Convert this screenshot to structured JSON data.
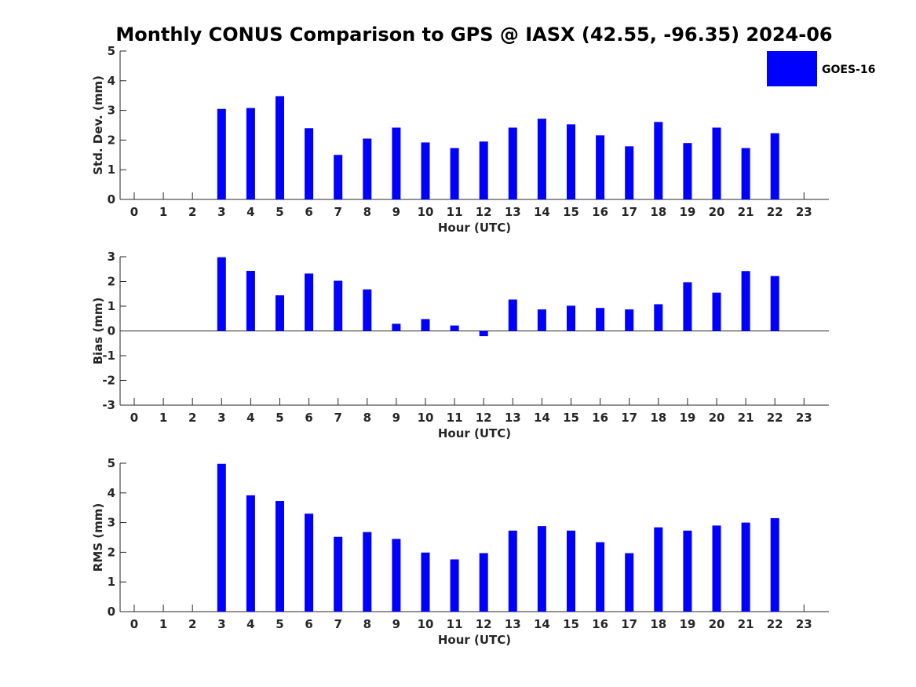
{
  "title": "Monthly CONUS Comparison to GPS @ IASX (42.55, -96.35) 2024-06",
  "colors": {
    "bar": "#0000ff",
    "axis": "#262626"
  },
  "legend": {
    "label": "GOES-16",
    "position": "top-right"
  },
  "chart_data": [
    {
      "type": "bar",
      "xlabel": "Hour (UTC)",
      "ylabel": "Std. Dev. (mm)",
      "categories": [
        "0",
        "1",
        "2",
        "3",
        "4",
        "5",
        "6",
        "7",
        "8",
        "9",
        "10",
        "11",
        "12",
        "13",
        "14",
        "15",
        "16",
        "17",
        "18",
        "19",
        "20",
        "21",
        "22",
        "23"
      ],
      "series": [
        {
          "name": "GOES-16",
          "values": [
            null,
            null,
            null,
            3.05,
            3.08,
            3.48,
            2.4,
            1.5,
            2.05,
            2.42,
            1.92,
            1.73,
            1.95,
            2.42,
            2.72,
            2.53,
            2.16,
            1.79,
            2.61,
            1.9,
            2.42,
            1.73,
            2.23,
            null
          ]
        }
      ],
      "ylim": [
        0,
        5
      ],
      "yticks": [
        "0",
        "1",
        "2",
        "3",
        "4",
        "5"
      ],
      "grid": false
    },
    {
      "type": "bar",
      "xlabel": "Hour (UTC)",
      "ylabel": "Bias (mm)",
      "categories": [
        "0",
        "1",
        "2",
        "3",
        "4",
        "5",
        "6",
        "7",
        "8",
        "9",
        "10",
        "11",
        "12",
        "13",
        "14",
        "15",
        "16",
        "17",
        "18",
        "19",
        "20",
        "21",
        "22",
        "23"
      ],
      "series": [
        {
          "name": "GOES-16",
          "values": [
            null,
            null,
            null,
            2.98,
            2.43,
            1.44,
            2.32,
            2.03,
            1.68,
            0.29,
            0.48,
            0.22,
            -0.21,
            1.27,
            0.87,
            1.02,
            0.93,
            0.87,
            1.08,
            1.97,
            1.55,
            2.42,
            2.22,
            null
          ]
        }
      ],
      "ylim": [
        -3,
        3
      ],
      "yticks": [
        "-3",
        "-2",
        "-1",
        "0",
        "1",
        "2",
        "3"
      ],
      "grid": false
    },
    {
      "type": "bar",
      "xlabel": "Hour (UTC)",
      "ylabel": "RMS (mm)",
      "categories": [
        "0",
        "1",
        "2",
        "3",
        "4",
        "5",
        "6",
        "7",
        "8",
        "9",
        "10",
        "11",
        "12",
        "13",
        "14",
        "15",
        "16",
        "17",
        "18",
        "19",
        "20",
        "21",
        "22",
        "23"
      ],
      "series": [
        {
          "name": "GOES-16",
          "values": [
            null,
            null,
            null,
            4.98,
            3.92,
            3.73,
            3.3,
            2.52,
            2.68,
            2.45,
            1.99,
            1.76,
            1.97,
            2.73,
            2.88,
            2.73,
            2.34,
            1.97,
            2.84,
            2.73,
            2.9,
            3.0,
            3.15,
            null
          ]
        }
      ],
      "ylim": [
        0,
        5
      ],
      "yticks": [
        "0",
        "1",
        "2",
        "3",
        "4",
        "5"
      ],
      "grid": false
    }
  ]
}
